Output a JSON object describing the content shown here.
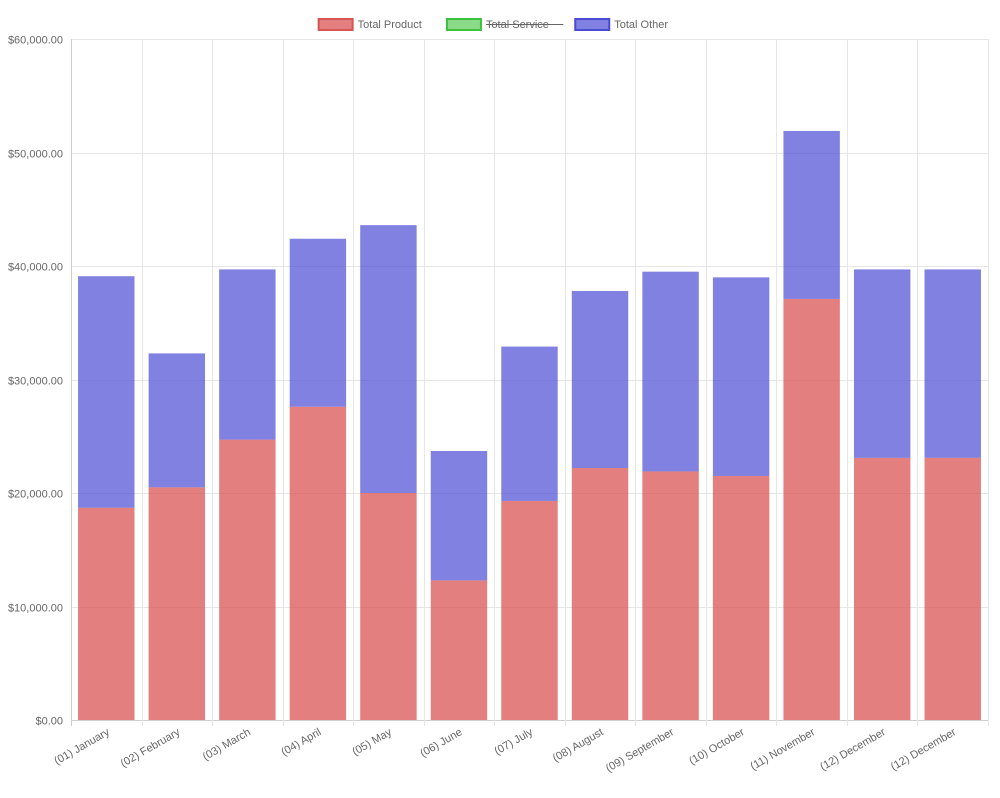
{
  "chart_data": {
    "type": "bar",
    "stacked": true,
    "title": "",
    "xlabel": "",
    "ylabel": "",
    "ylim": [
      0,
      60000
    ],
    "y_ticks": [
      "$0.00",
      "$10,000.00",
      "$20,000.00",
      "$30,000.00",
      "$40,000.00",
      "$50,000.00",
      "$60,000.00"
    ],
    "y_tick_values": [
      0,
      10000,
      20000,
      30000,
      40000,
      50000,
      60000
    ],
    "grid": true,
    "legend_position": "top",
    "categories": [
      "(01) January",
      "(02) February",
      "(03) March",
      "(04) April",
      "(05) May",
      "(06) June",
      "(07) July",
      "(08) August",
      "(09) September",
      "(10) October",
      "(11) November",
      "(12) December",
      "(12) December"
    ],
    "series": [
      {
        "name": "Total Product",
        "color": "#d95454",
        "fill": "rgba(217, 84, 84, 0.75)",
        "hidden": false,
        "values": [
          18700,
          20500,
          24700,
          27600,
          20000,
          12300,
          19300,
          22200,
          21900,
          21500,
          37100,
          23100,
          23100
        ]
      },
      {
        "name": "Total Service",
        "color": "#3cc23c",
        "fill": "rgba(60, 194, 60, 0.6)",
        "hidden": true,
        "values": [
          0,
          0,
          0,
          0,
          0,
          0,
          0,
          0,
          0,
          0,
          0,
          0,
          0
        ]
      },
      {
        "name": "Total Other",
        "color": "#4b4bd6",
        "fill": "rgba(75, 75, 214, 0.7)",
        "hidden": false,
        "values": [
          20400,
          11800,
          15000,
          14800,
          23600,
          11400,
          13600,
          15600,
          17600,
          17500,
          14800,
          16600,
          16600
        ]
      }
    ]
  }
}
